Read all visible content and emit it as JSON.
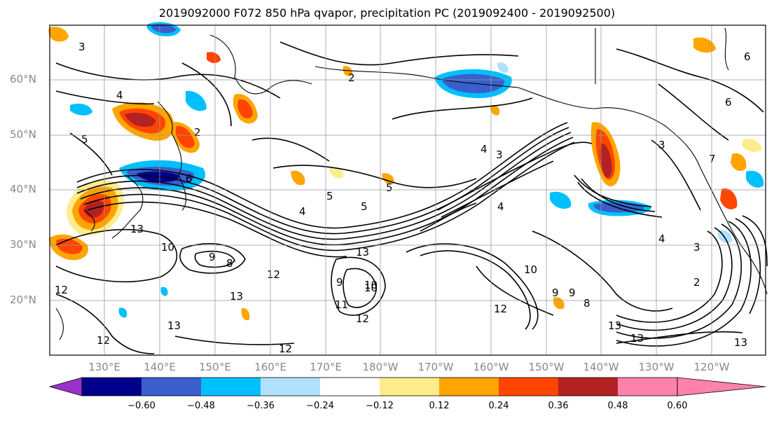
{
  "title": "2019092000 F072 850 hPa qvapor, precipitation PC (2019092400 - 2019092500)",
  "lat_labels": [
    "60°N",
    "50°N",
    "40°N",
    "30°N",
    "20°N"
  ],
  "lon_labels": [
    "130°E",
    "140°E",
    "150°E",
    "160°E",
    "170°E",
    "180°W",
    "170°W",
    "160°W",
    "150°W",
    "140°W",
    "130°W",
    "120°W"
  ],
  "contour_labels": [
    "3",
    "4",
    "5",
    "6",
    "2",
    "5",
    "4",
    "5",
    "4",
    "3",
    "2",
    "6",
    "5",
    "4",
    "13",
    "10",
    "9",
    "8",
    "12",
    "13",
    "13",
    "12",
    "10",
    "12",
    "13",
    "11",
    "12",
    "12",
    "12",
    "4",
    "3",
    "3",
    "2",
    "6",
    "13",
    "13",
    "13",
    "10",
    "8",
    "7",
    "9",
    "9",
    "9",
    "10"
  ],
  "colorbar": {
    "ticks": [
      "−0.60",
      "−0.48",
      "−0.36",
      "−0.24",
      "−0.12",
      "0.12",
      "0.24",
      "0.36",
      "0.48",
      "0.60"
    ],
    "colors": [
      "#9932CC",
      "#00008B",
      "#3A5FCD",
      "#00BFFF",
      "#B0E2FF",
      "#FFFFFF",
      "#FFEC8B",
      "#FFA500",
      "#FF4500",
      "#B22222",
      "#FF82AB"
    ]
  },
  "colors": {
    "frame": "#000000",
    "grid": "#999999",
    "tick_label": "#888888"
  }
}
